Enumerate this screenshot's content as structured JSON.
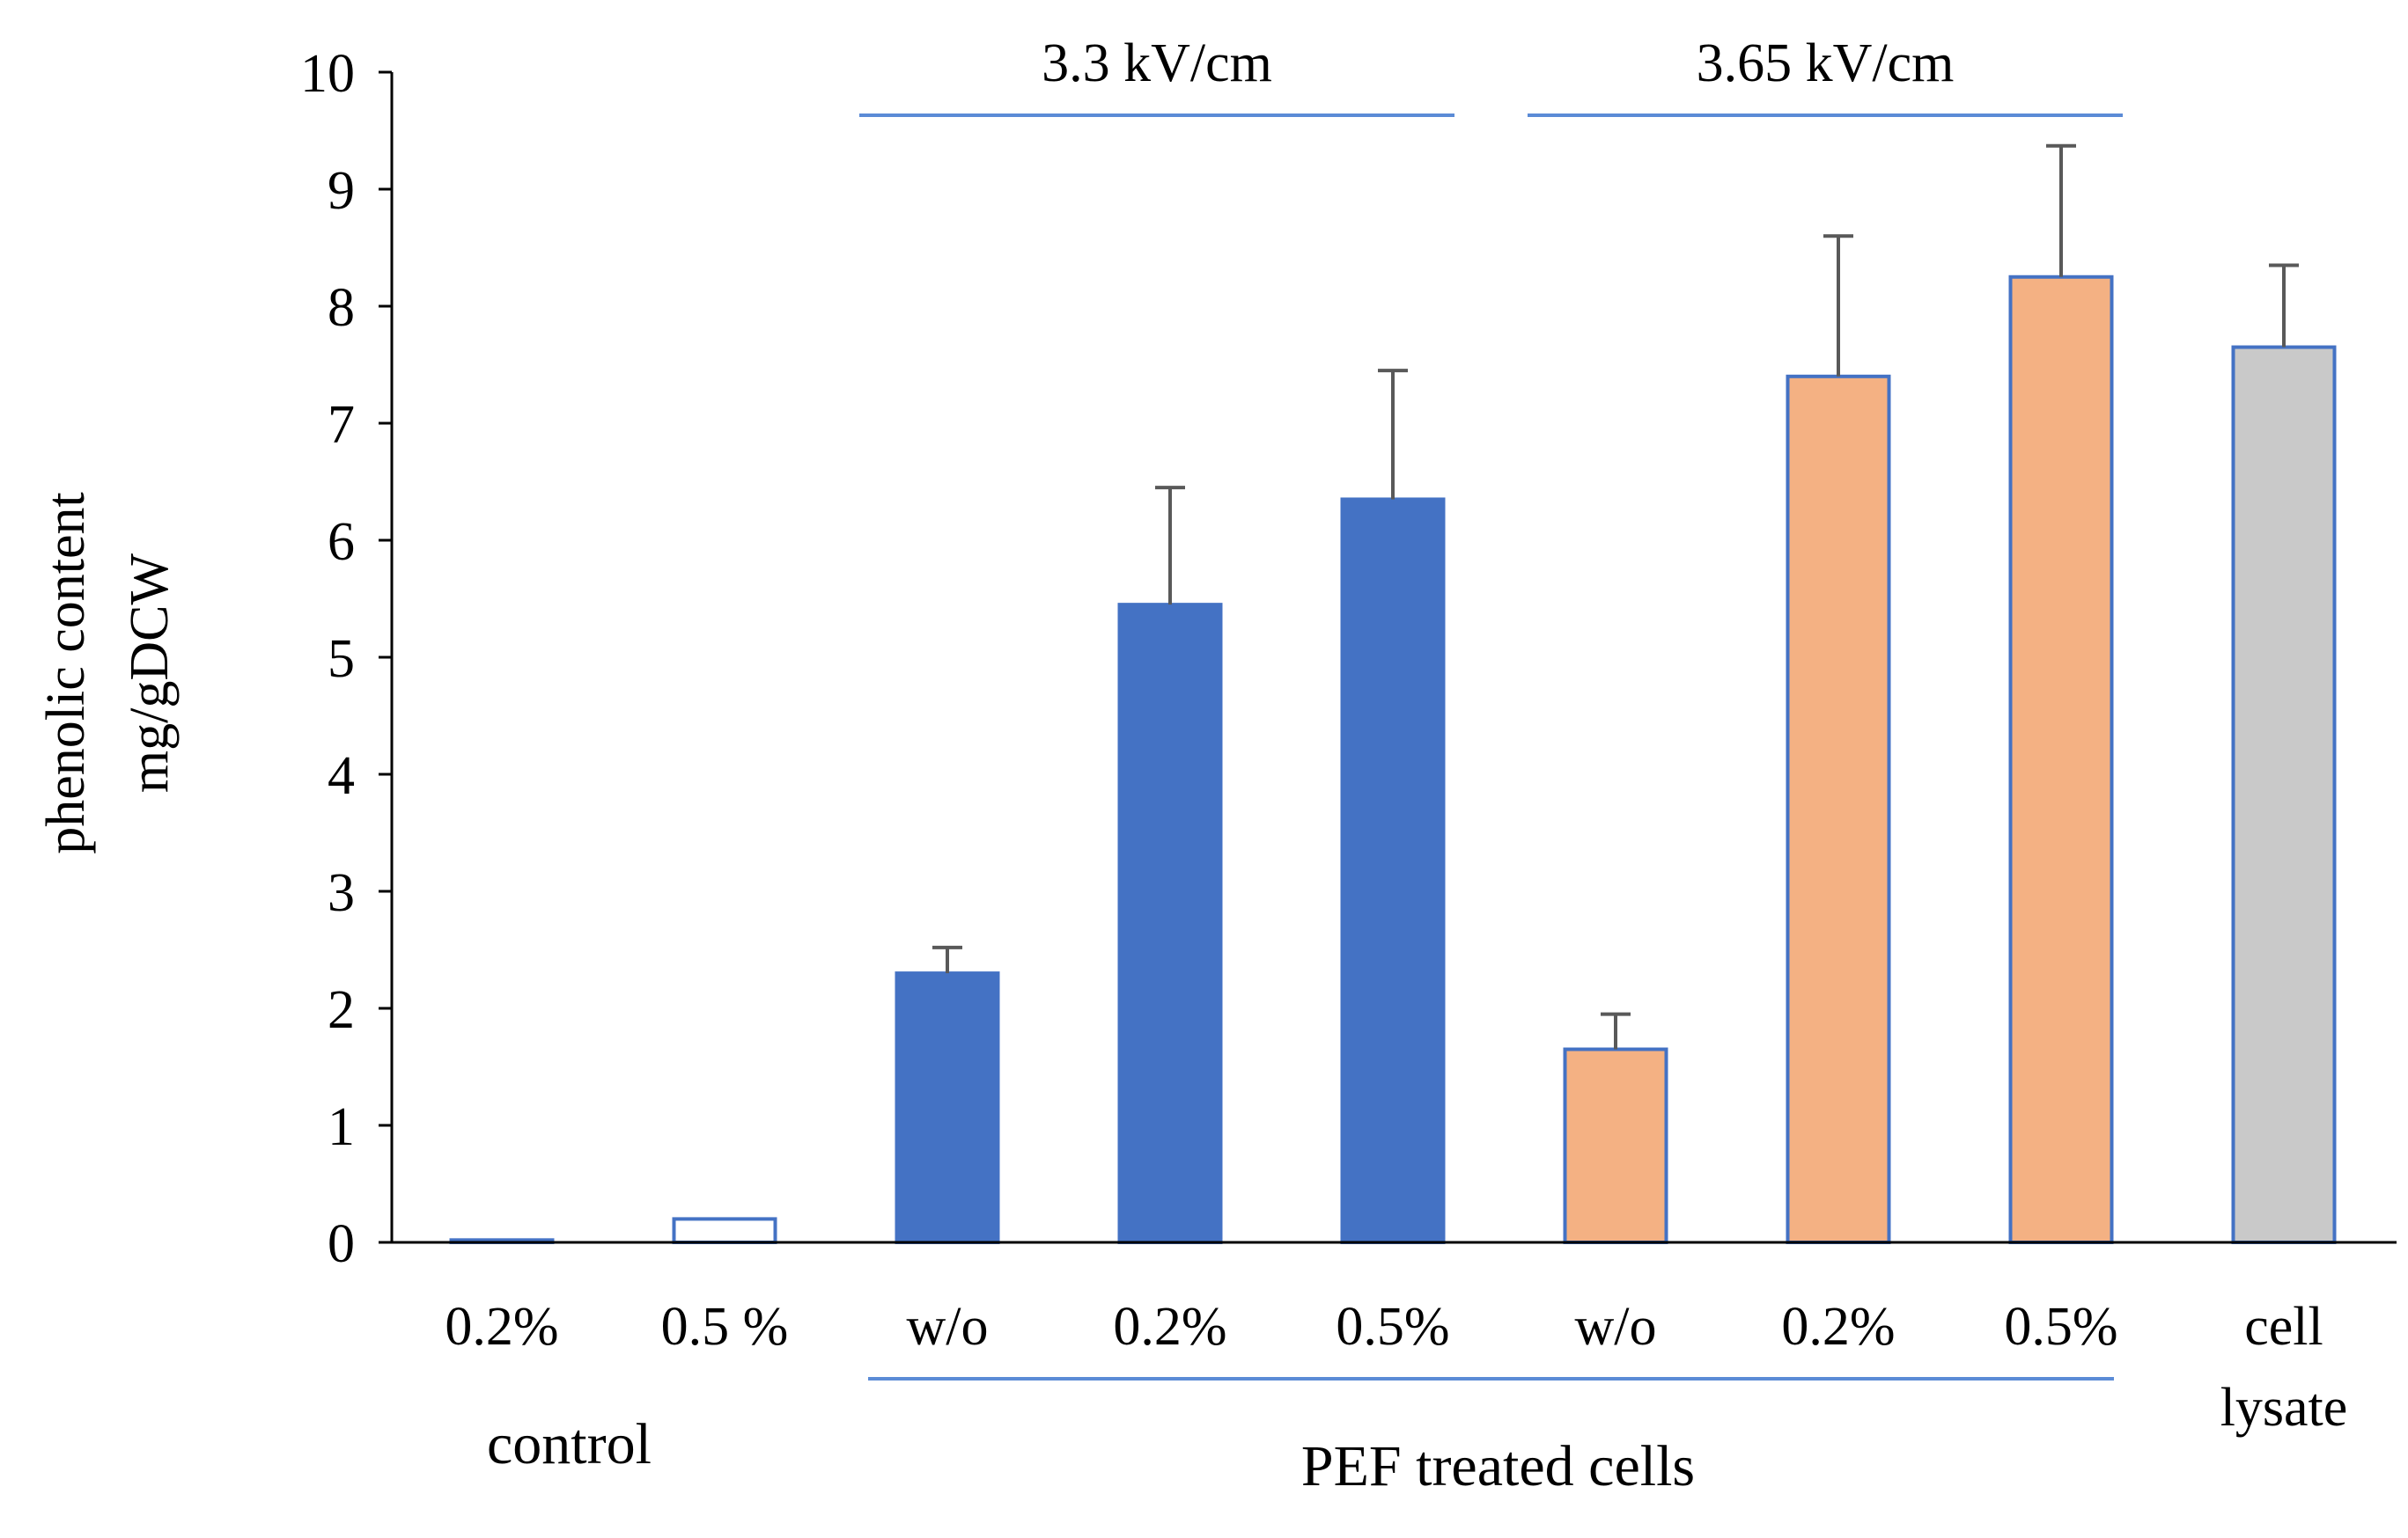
{
  "chart_data": {
    "type": "bar",
    "title": "",
    "ylabel_lines": [
      "phenolic content",
      "mg/gDCW"
    ],
    "xlabel": "",
    "ylim": [
      0,
      10
    ],
    "yticks": [
      0,
      1,
      2,
      3,
      4,
      5,
      6,
      7,
      8,
      9,
      10
    ],
    "grid": false,
    "colors": {
      "blue": "#4472C4",
      "orange": "#F4B183",
      "gray": "#C9C9C9",
      "white": "#FFFFFF",
      "bar_edge": "#4472C4",
      "error_bar": "#595959",
      "bracket": "#5B8BD6",
      "axis": "#000000"
    },
    "bars": [
      {
        "label": "0.2%",
        "value": 0.02,
        "error": 0,
        "fill": "white"
      },
      {
        "label": "0.5 %",
        "value": 0.2,
        "error": 0,
        "fill": "white"
      },
      {
        "label": "w/o",
        "value": 2.3,
        "error": 0.22,
        "fill": "blue"
      },
      {
        "label": "0.2%",
        "value": 5.45,
        "error": 1.0,
        "fill": "blue"
      },
      {
        "label": "0.5%",
        "value": 6.35,
        "error": 1.1,
        "fill": "blue"
      },
      {
        "label": "w/o",
        "value": 1.65,
        "error": 0.3,
        "fill": "orange"
      },
      {
        "label": "0.2%",
        "value": 7.4,
        "error": 1.2,
        "fill": "orange"
      },
      {
        "label": "0.5%",
        "value": 8.25,
        "error": 1.12,
        "fill": "orange"
      },
      {
        "label": "cell\nlysate",
        "value": 7.65,
        "error": 0.7,
        "fill": "gray"
      }
    ],
    "top_groups": [
      {
        "label": "3.3 kV/cm",
        "from": 2,
        "to": 4
      },
      {
        "label": "3.65 kV/cm",
        "from": 5,
        "to": 7
      }
    ],
    "bottom_groups": [
      {
        "label": "control",
        "from": 0,
        "to": 1,
        "line": false
      },
      {
        "label": "PEF treated cells",
        "from": 2,
        "to": 7,
        "line": true
      }
    ]
  }
}
